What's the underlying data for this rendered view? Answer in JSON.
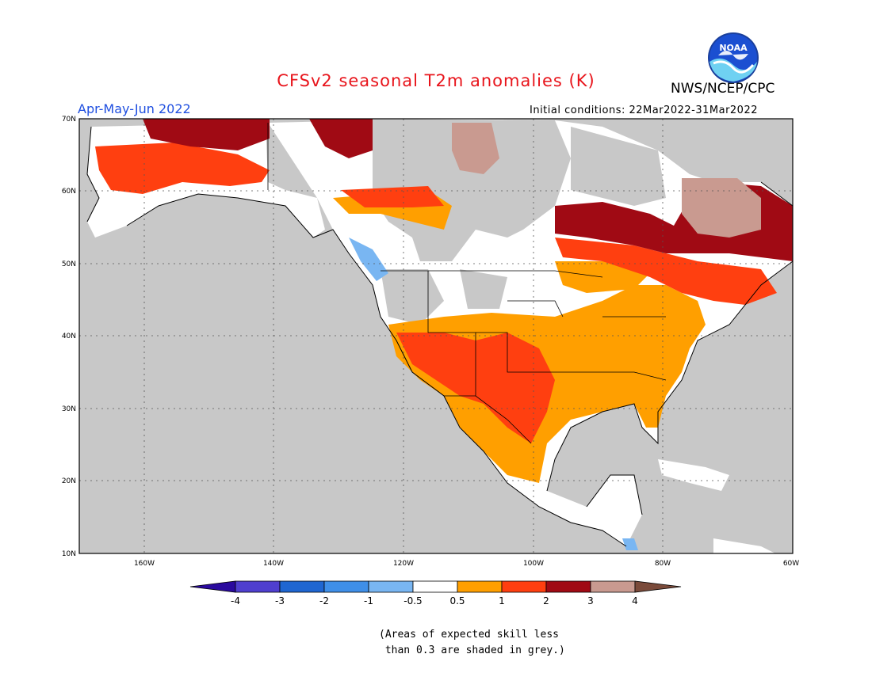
{
  "title": "CFSv2 seasonal T2m anomalies (K)",
  "agency": "NWS/NCEP/CPC",
  "logo_text": "NOAA",
  "season": "Apr-May-Jun 2022",
  "initial_conditions": "Initial conditions: 22Mar2022-31Mar2022",
  "map": {
    "lon_range": [
      -170,
      -60
    ],
    "lat_range": [
      10,
      70
    ],
    "lat_ticks": [
      "10N",
      "20N",
      "30N",
      "40N",
      "50N",
      "60N",
      "70N"
    ],
    "lon_ticks": [
      "160W",
      "140W",
      "120W",
      "100W",
      "80W",
      "60W"
    ],
    "grey_color": "#c8c8c8"
  },
  "colorbar": {
    "labels": [
      "-4",
      "-3",
      "-2",
      "-1",
      "-0.5",
      "0.5",
      "1",
      "2",
      "3",
      "4"
    ],
    "colors": [
      "#2a0a9e",
      "#4f3fcf",
      "#1f66d1",
      "#3f8fe8",
      "#79b6f2",
      "#ffffff",
      "#ff9f00",
      "#ff3f10",
      "#a00a14",
      "#c99a90",
      "#7a4a3a"
    ]
  },
  "note": {
    "line1": "(Areas of expected skill less",
    "line2": " than 0.3 are shaded in grey.)"
  }
}
